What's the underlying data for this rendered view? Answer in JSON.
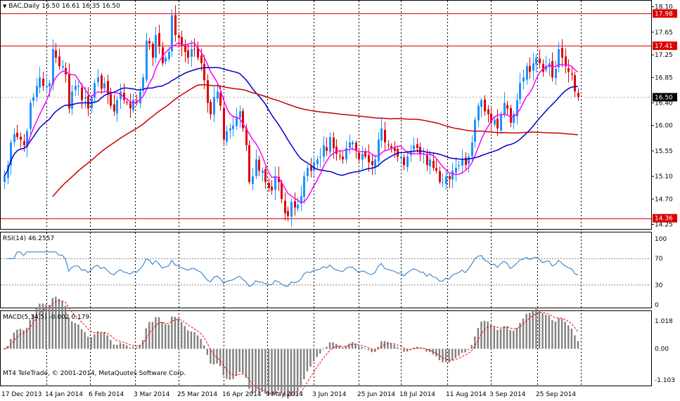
{
  "header": {
    "symbol_line": "BAC,Daily  16.50 16.61 16.35 16.50"
  },
  "rsi": {
    "title": "RSI(14) 46.2557"
  },
  "macd": {
    "title": "MACD(5,34,5) -0.002 0.179"
  },
  "footer": {
    "credit": "MT4 TeleTrade, © 2001-2014, MetaQuotes Software Corp."
  },
  "colors": {
    "background": "#ffffff",
    "candle_up": "#1e90ff",
    "candle_down": "#dd0000",
    "ma_fast": "#ff00ff",
    "ma_mid": "#0000c8",
    "ma_slow": "#c80000",
    "hline": "#dd0000",
    "rsi_line": "#1e78c8",
    "macd_hist": "#808080",
    "macd_signal": "#ff0000",
    "tag_bg": "#dd0000",
    "current_tag_bg": "#000000"
  },
  "chart_data": [
    {
      "type": "candlestick",
      "pane": "price",
      "symbol": "BAC",
      "timeframe": "Daily",
      "ohlc_last": {
        "open": 16.5,
        "high": 16.61,
        "low": 16.35,
        "close": 16.5
      },
      "y_ticks": [
        "18.10",
        "17.65",
        "17.25",
        "16.85",
        "16.40",
        "16.00",
        "15.55",
        "15.10",
        "14.70",
        "14.25"
      ],
      "ylim": [
        14.22,
        18.12
      ],
      "x_tick_labels": [
        "17 Dec 2013",
        "14 Jan 2014",
        "6 Feb 2014",
        "3 Mar 2014",
        "25 Mar 2014",
        "16 Apr 2014",
        "9 May 2014",
        "3 Jun 2014",
        "25 Jun 2014",
        "18 Jul 2014",
        "11 Aug 2014",
        "3 Sep 2014",
        "25 Sep 2014"
      ],
      "horizontal_lines": [
        {
          "value": 17.98,
          "label": "17.98"
        },
        {
          "value": 17.41,
          "label": "17.41"
        },
        {
          "value": 14.36,
          "label": "14.36"
        }
      ],
      "current_price": {
        "value": 16.5,
        "label": "16.50"
      },
      "closes": [
        15.1,
        15.3,
        15.7,
        15.85,
        15.8,
        15.75,
        15.65,
        15.9,
        16.4,
        16.5,
        16.7,
        16.85,
        16.7,
        16.7,
        16.75,
        17.35,
        17.2,
        17.05,
        17.05,
        16.9,
        16.3,
        16.6,
        16.7,
        16.7,
        16.45,
        16.5,
        16.3,
        16.5,
        16.75,
        16.85,
        16.65,
        16.75,
        16.55,
        16.35,
        16.25,
        16.45,
        16.6,
        16.45,
        16.4,
        16.3,
        16.45,
        16.4,
        16.6,
        16.85,
        17.5,
        17.45,
        17.2,
        17.6,
        17.4,
        17.1,
        17.2,
        17.3,
        17.95,
        17.6,
        17.55,
        17.4,
        17.3,
        17.2,
        17.35,
        17.35,
        17.2,
        17.1,
        16.8,
        16.4,
        16.2,
        16.5,
        16.6,
        16.35,
        15.75,
        15.9,
        15.95,
        16.0,
        16.15,
        16.25,
        15.95,
        15.65,
        15.0,
        15.1,
        15.4,
        15.2,
        15.2,
        15.0,
        14.9,
        14.85,
        15.1,
        15.0,
        14.7,
        14.45,
        14.4,
        14.65,
        14.55,
        14.6,
        14.75,
        15.1,
        15.25,
        15.2,
        15.35,
        15.4,
        15.45,
        15.65,
        15.55,
        15.8,
        15.6,
        15.5,
        15.45,
        15.4,
        15.6,
        15.7,
        15.7,
        15.55,
        15.4,
        15.5,
        15.45,
        15.35,
        15.3,
        15.4,
        15.75,
        15.95,
        15.7,
        15.65,
        15.6,
        15.55,
        15.45,
        15.45,
        15.3,
        15.45,
        15.55,
        15.65,
        15.6,
        15.5,
        15.5,
        15.3,
        15.4,
        15.25,
        15.2,
        15.0,
        15.0,
        15.1,
        15.05,
        15.2,
        15.25,
        15.3,
        15.4,
        15.3,
        15.45,
        15.7,
        16.1,
        16.35,
        16.45,
        16.25,
        16.2,
        16.05,
        16.1,
        15.95,
        16.2,
        16.4,
        16.3,
        16.05,
        16.2,
        16.45,
        16.75,
        16.85,
        17.05,
        16.95,
        17.1,
        17.2,
        17.1,
        16.95,
        17.05,
        17.1,
        16.85,
        17.0,
        17.35,
        17.2,
        17.05,
        16.95,
        16.9,
        16.6,
        16.5
      ],
      "series": [
        {
          "name": "MA fast",
          "color": "#ff00ff"
        },
        {
          "name": "MA mid",
          "color": "#0000c8"
        },
        {
          "name": "MA slow",
          "color": "#c80000"
        }
      ]
    },
    {
      "type": "line",
      "pane": "rsi",
      "name": "RSI(14)",
      "last_value": 46.2557,
      "y_ticks": [
        "100",
        "70",
        "30",
        "0"
      ],
      "levels": [
        70,
        30
      ],
      "ylim": [
        0,
        100
      ]
    },
    {
      "type": "bar",
      "pane": "macd",
      "name": "MACD(5,34,5)",
      "last_value": -0.002,
      "signal_value": 0.179,
      "y_ticks": [
        "1.018",
        "0.00",
        "-1.103"
      ],
      "ylim": [
        -1.103,
        1.018
      ]
    }
  ]
}
